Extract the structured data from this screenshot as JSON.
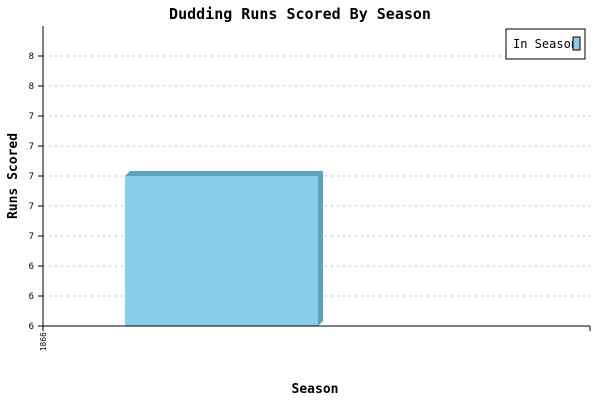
{
  "chart_data": {
    "type": "bar",
    "title": "Dudding Runs Scored By Season",
    "xlabel": "Season",
    "ylabel": "Runs Scored",
    "categories": [
      "1866"
    ],
    "series": [
      {
        "name": "In Season",
        "values": [
          7
        ],
        "color": "#87ceeb",
        "shade": "#5ba3c0"
      }
    ],
    "ylim": [
      6,
      8
    ],
    "yticks": [
      6,
      6.2,
      6.4,
      6.6,
      6.8,
      7,
      7.2,
      7.4,
      7.6,
      7.8
    ],
    "ytick_labels": [
      "6",
      "6",
      "6",
      "7",
      "7",
      "7",
      "7",
      "7",
      "8",
      "8"
    ],
    "grid": true,
    "legend": "top-right"
  }
}
